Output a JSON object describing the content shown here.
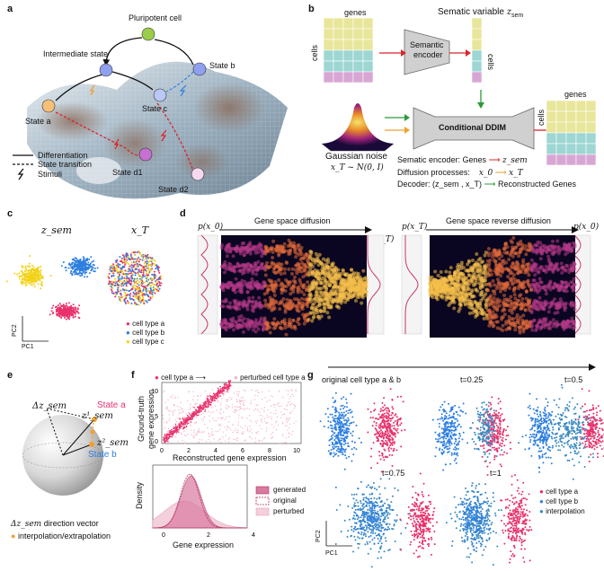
{
  "panels": {
    "a": "a",
    "b": "b",
    "c": "c",
    "d": "d",
    "e": "e",
    "f": "f",
    "g": "g"
  },
  "panel_a": {
    "pluripotent": "Pluripotent cell",
    "intermediate": "Intermediate state",
    "state_a": "State a",
    "state_b": "State b",
    "state_c": "State c",
    "state_d1": "State d1",
    "state_d2": "State d2",
    "legend": [
      {
        "style": "solid",
        "label": "Differentiation"
      },
      {
        "style": "dashed",
        "label": "State transition"
      },
      {
        "style": "bolt",
        "label": "Stimuli"
      }
    ]
  },
  "panel_b": {
    "genes_top": "genes",
    "cells_left": "cells",
    "semantic_var_title": "Sematic variable",
    "semantic_var_sym": "z",
    "semantic_var_sub": "sem",
    "encoder_l1": "Semantic",
    "encoder_l2": "encoder",
    "cells_right": "cells",
    "ddim": "Conditional DDIM",
    "genes_out": "genes",
    "cells_out": "cells",
    "noise_l1": "Gaussian noise",
    "noise_l2": "x_T ~ N(0, I)",
    "line1_pre": "Sematic encoder: Genes",
    "line1_post": "z_sem",
    "line2_pre": "Diffusion processes:",
    "line2_mid": "x_0",
    "line2_post": "x_T",
    "line3_pre": "Decoder: (z_sem , x_T)",
    "line3_post": "Reconstructed Genes",
    "colors": {
      "yellow": "#e8e69a",
      "teal": "#9dd6d3",
      "pink": "#d8a6d4",
      "red": "#d9242b",
      "green": "#2a9a3a",
      "orange": "#f0a030"
    }
  },
  "panel_c": {
    "title_left": "z_sem",
    "title_right": "x_T",
    "axis_y": "PC2",
    "axis_x": "PC1",
    "legend": [
      {
        "label": "cell type a",
        "color": "#e8316b"
      },
      {
        "label": "cell type b",
        "color": "#2e7fe0"
      },
      {
        "label": "cell type c",
        "color": "#f2d21a"
      }
    ]
  },
  "panel_d": {
    "forward": "Gene space diffusion",
    "reverse": "Gene space reverse diffusion",
    "p_x0": "p(x_0)",
    "p_xT": "p(x_T)",
    "p_xT2": "p(x_T)",
    "p_x0_2": "p(x_0)"
  },
  "panel_e": {
    "state_a": "State a",
    "state_b": "State b",
    "dz": "Δz_sem",
    "z1": "z¹_sem",
    "z2": "z²_sem",
    "legend_dir": "direction vector",
    "legend_dir_sym": "Δz_sem",
    "legend_interp": "interpolation/extrapolation"
  },
  "panel_f": {
    "legend_a": "cell type a",
    "legend_b": "perturbed cell type a",
    "ylabel1": "Ground-truth",
    "ylabel2": "gene expression",
    "xlabel": "Reconstructed gene expression",
    "xticks": [
      "0",
      "2",
      "4",
      "6",
      "8",
      "10"
    ],
    "yticks": [
      "0",
      "5",
      "10"
    ],
    "density_label": "Density",
    "density_xlabel": "Gene expression",
    "density_xticks": [
      "0",
      "2",
      "4"
    ],
    "density_legend": [
      {
        "label": "generated",
        "style": "solid"
      },
      {
        "label": "original",
        "style": "dashed"
      },
      {
        "label": "perturbed",
        "style": "light"
      }
    ]
  },
  "panel_g": {
    "t0": "original cell type a & b",
    "t025": "t=0.25",
    "t05": "t=0.5",
    "t075": "t=0.75",
    "t1": "t=1",
    "axis_y": "PC2",
    "axis_x": "PC1",
    "legend": [
      {
        "label": "cell type a",
        "color": "#e8316b"
      },
      {
        "label": "cell type b",
        "color": "#2e7fe0"
      },
      {
        "label": "interpolation",
        "color": "#3a8ac0"
      }
    ]
  }
}
